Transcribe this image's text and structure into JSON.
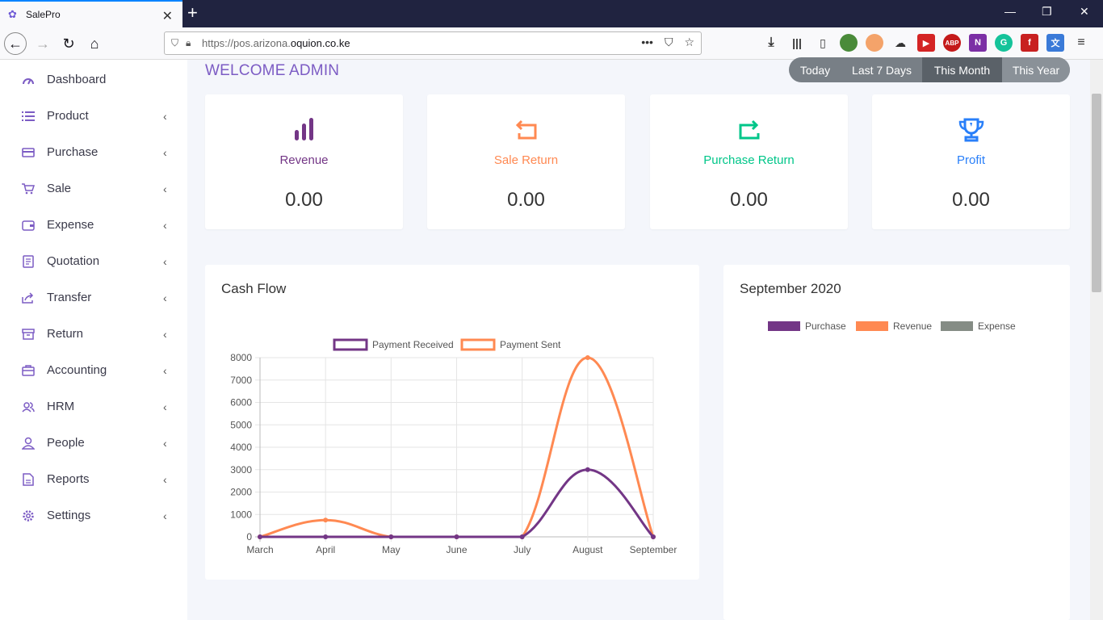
{
  "browser": {
    "tab_title": "SalePro",
    "url_protocol": "https://pos.arizona.",
    "url_host": "oquion.co.ke"
  },
  "sidebar": {
    "items": [
      {
        "label": "Dashboard",
        "icon": "gauge-icon"
      },
      {
        "label": "Product",
        "icon": "list-icon"
      },
      {
        "label": "Purchase",
        "icon": "card-icon"
      },
      {
        "label": "Sale",
        "icon": "cart-icon"
      },
      {
        "label": "Expense",
        "icon": "wallet-icon"
      },
      {
        "label": "Quotation",
        "icon": "document-icon"
      },
      {
        "label": "Transfer",
        "icon": "share-icon"
      },
      {
        "label": "Return",
        "icon": "box-icon"
      },
      {
        "label": "Accounting",
        "icon": "briefcase-icon"
      },
      {
        "label": "HRM",
        "icon": "users-icon"
      },
      {
        "label": "People",
        "icon": "user-icon"
      },
      {
        "label": "Reports",
        "icon": "report-icon"
      },
      {
        "label": "Settings",
        "icon": "gear-icon"
      }
    ]
  },
  "header": {
    "welcome": "WELCOME ADMIN",
    "filters": [
      "Today",
      "Last 7 Days",
      "This Month",
      "This Year"
    ],
    "active_filter": "This Month"
  },
  "cards": [
    {
      "title": "Revenue",
      "value": "0.00",
      "color": "#733686",
      "icon": "bar-chart-icon"
    },
    {
      "title": "Sale Return",
      "value": "0.00",
      "color": "#ff8952",
      "icon": "return-icon"
    },
    {
      "title": "Purchase Return",
      "value": "0.00",
      "color": "#00c689",
      "icon": "purchase-return-icon"
    },
    {
      "title": "Profit",
      "value": "0.00",
      "color": "#297ff9",
      "icon": "trophy-icon"
    }
  ],
  "cashflow": {
    "title": "Cash Flow"
  },
  "monthly": {
    "title": "September 2020",
    "legend": [
      {
        "name": "Purchase",
        "color": "#733686"
      },
      {
        "name": "Revenue",
        "color": "#ff8952"
      },
      {
        "name": "Expense",
        "color": "#858c85"
      }
    ]
  },
  "chart_data": {
    "type": "line",
    "categories": [
      "March",
      "April",
      "May",
      "June",
      "July",
      "August",
      "September"
    ],
    "series": [
      {
        "name": "Payment Received",
        "color": "#733686",
        "values": [
          0,
          0,
          0,
          0,
          0,
          3000,
          0
        ]
      },
      {
        "name": "Payment Sent",
        "color": "#ff8952",
        "values": [
          0,
          750,
          0,
          0,
          0,
          8000,
          0
        ]
      }
    ],
    "yticks": [
      "8000",
      "7000",
      "6000",
      "5000",
      "4000",
      "3000",
      "2000",
      "1000",
      "0"
    ],
    "ylim": [
      0,
      8000
    ],
    "grid": true,
    "legend": "top"
  }
}
